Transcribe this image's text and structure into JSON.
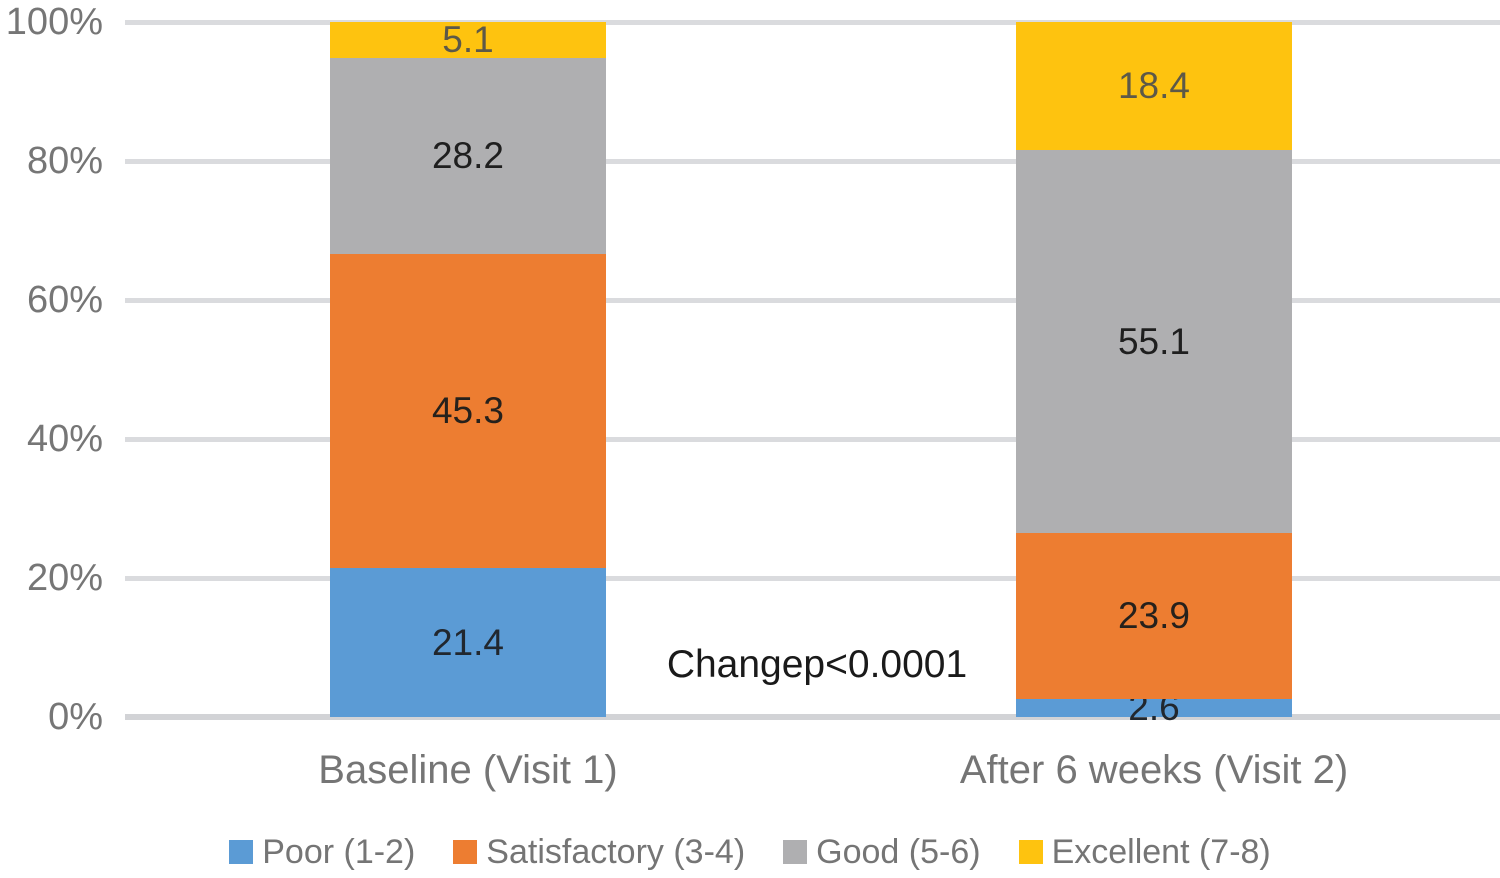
{
  "chart_data": {
    "type": "bar",
    "stacked": true,
    "percent_stacked": true,
    "title": "",
    "xlabel": "",
    "ylabel": "",
    "categories": [
      "Baseline (Visit 1)",
      "After 6 weeks (Visit 2)"
    ],
    "series": [
      {
        "name": "Poor (1-2)",
        "color": "#5B9BD5",
        "label_color": "#21272e",
        "values": [
          21.4,
          2.6
        ]
      },
      {
        "name": "Satisfactory (3-4)",
        "color": "#ED7D31",
        "label_color": "#26211c",
        "values": [
          45.3,
          23.9
        ]
      },
      {
        "name": "Good (5-6)",
        "color": "#AFAFB1",
        "label_color": "#1f1f1f",
        "values": [
          28.2,
          55.1
        ]
      },
      {
        "name": "Excellent (7-8)",
        "color": "#FEC30F",
        "label_color": "#5d5948",
        "values": [
          5.1,
          18.4
        ]
      }
    ],
    "y_axis": {
      "ylim": [
        0,
        100
      ],
      "ticks": [
        {
          "label": "0%",
          "value": 0
        },
        {
          "label": "20%",
          "value": 20
        },
        {
          "label": "40%",
          "value": 40
        },
        {
          "label": "60%",
          "value": 60
        },
        {
          "label": "80%",
          "value": 80
        },
        {
          "label": "100%",
          "value": 100
        }
      ]
    },
    "annotation": "Changep<0.0001",
    "grid": true,
    "legend_position": "bottom"
  },
  "colors": {
    "gridline": "#dadbde",
    "baseline": "#d2d3d6",
    "axis_text": "#767676",
    "category_text": "#757575",
    "legend_text": "#757575",
    "annotation_text": "#1a1a1a",
    "background": "#ffffff"
  }
}
